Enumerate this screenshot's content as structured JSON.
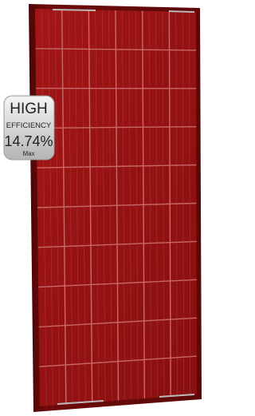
{
  "badge": {
    "line1": "HIGH",
    "line2": "EFFICIENCY",
    "line3": "14.74%",
    "line4": "Max"
  }
}
